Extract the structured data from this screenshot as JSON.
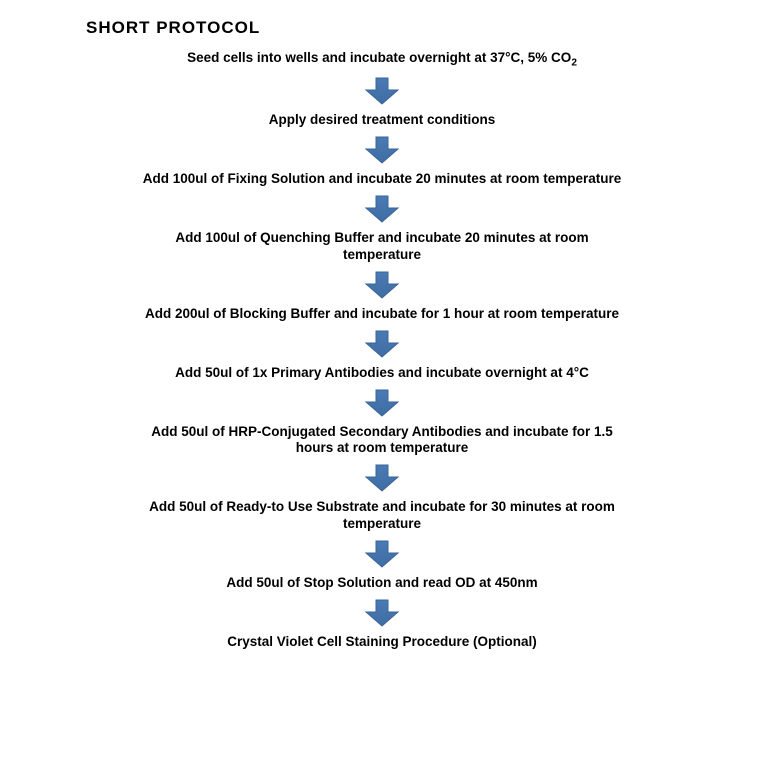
{
  "title": "SHORT PROTOCOL",
  "arrow": {
    "width": 36,
    "height": 30,
    "fill": "#4a7bb5",
    "stroke": "#3a6498",
    "stroke_width": 1
  },
  "flowchart": {
    "type": "flowchart",
    "background_color": "#ffffff",
    "text_color": "#000000",
    "step_font_size": 13.5,
    "step_font_weight": 700,
    "title_font_size": 17,
    "title_font_weight": 900,
    "nodes": [
      {
        "id": "s1",
        "label_html": "Seed cells into wells and incubate overnight at 37°C, 5% CO<sub>2</sub>"
      },
      {
        "id": "s2",
        "label_html": "Apply desired treatment conditions"
      },
      {
        "id": "s3",
        "label_html": "Add 100ul of Fixing Solution and incubate 20 minutes at room temperature"
      },
      {
        "id": "s4",
        "label_html": "Add 100ul of Quenching Buffer and incubate 20 minutes at room<br>temperature"
      },
      {
        "id": "s5",
        "label_html": "Add 200ul of Blocking Buffer and incubate for 1 hour at room temperature"
      },
      {
        "id": "s6",
        "label_html": "Add 50ul of 1x Primary Antibodies and incubate overnight at 4°C"
      },
      {
        "id": "s7",
        "label_html": "Add 50ul of HRP-Conjugated Secondary Antibodies and incubate for 1.5<br>hours at room temperature"
      },
      {
        "id": "s8",
        "label_html": "Add 50ul of Ready-to Use Substrate and incubate for 30 minutes at room<br>temperature"
      },
      {
        "id": "s9",
        "label_html": "Add 50ul of Stop Solution and read OD at 450nm"
      },
      {
        "id": "s10",
        "label_html": "Crystal Violet Cell Staining Procedure (Optional)"
      }
    ],
    "edges": [
      {
        "from": "s1",
        "to": "s2"
      },
      {
        "from": "s2",
        "to": "s3"
      },
      {
        "from": "s3",
        "to": "s4"
      },
      {
        "from": "s4",
        "to": "s5"
      },
      {
        "from": "s5",
        "to": "s6"
      },
      {
        "from": "s6",
        "to": "s7"
      },
      {
        "from": "s7",
        "to": "s8"
      },
      {
        "from": "s8",
        "to": "s9"
      },
      {
        "from": "s9",
        "to": "s10"
      }
    ]
  }
}
